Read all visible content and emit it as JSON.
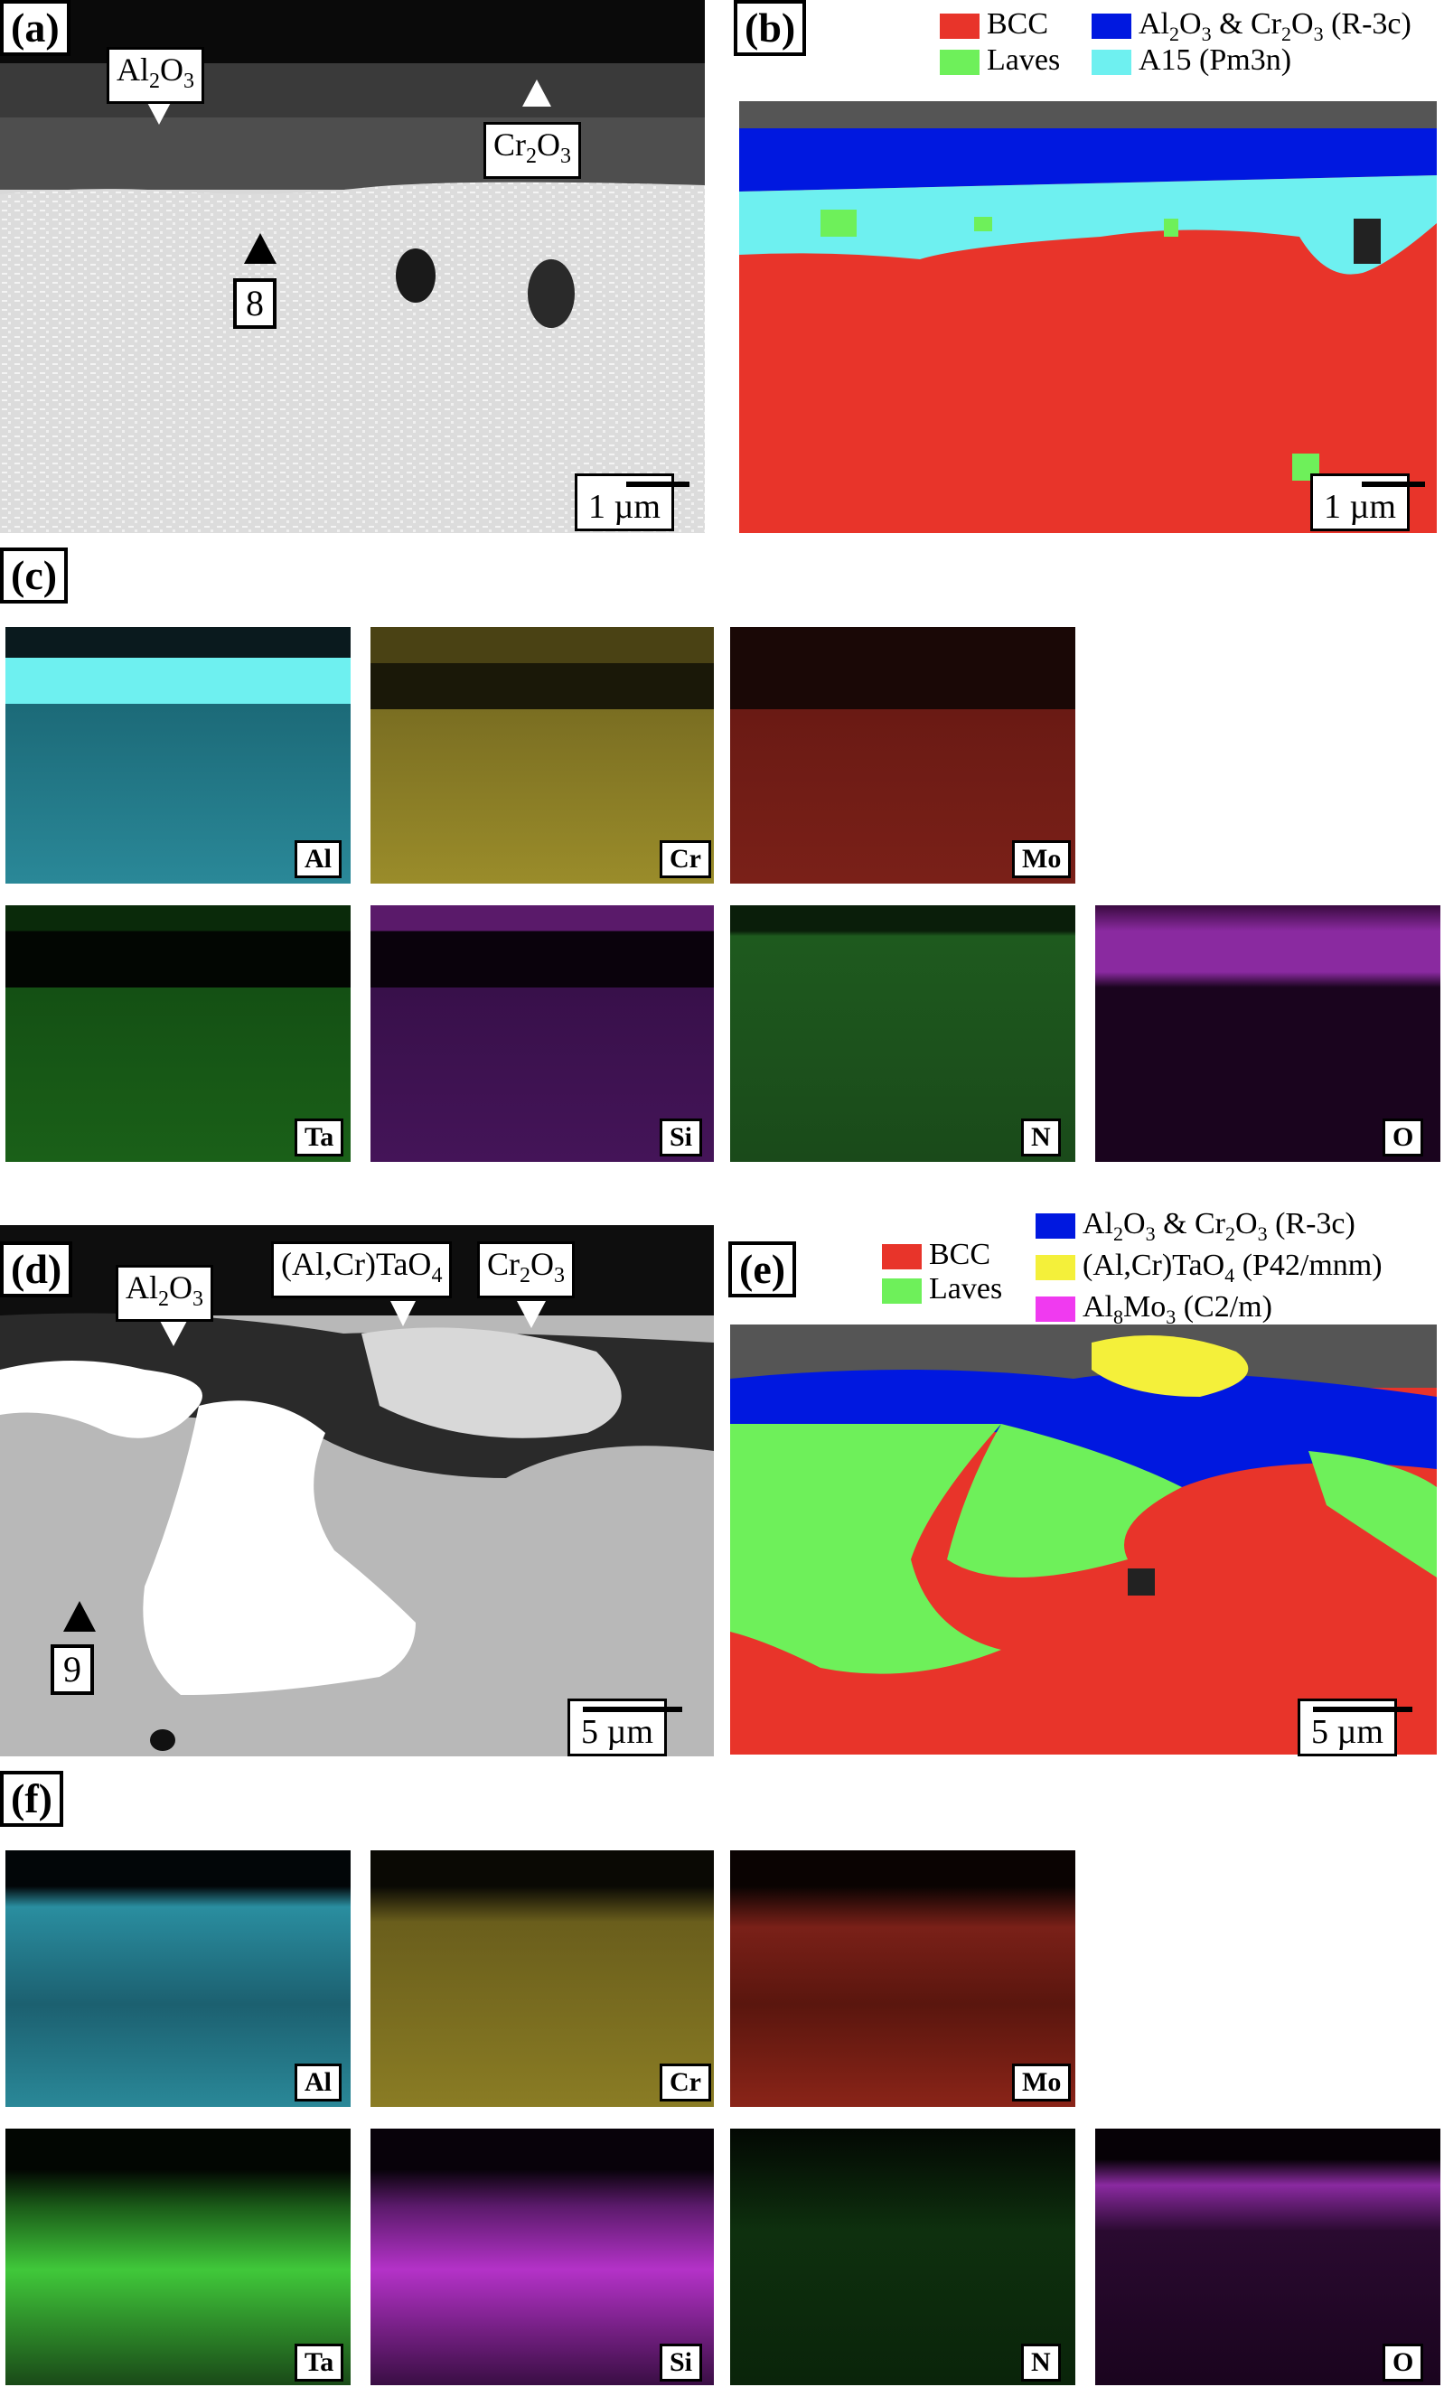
{
  "panels": {
    "a": {
      "letter": "(a)",
      "label_al2o3": "Al2O3",
      "label_cr2o3": "Cr2O3",
      "point": "8",
      "scale": "1 µm"
    },
    "b": {
      "letter": "(b)",
      "scale": "1 µm",
      "legend": [
        {
          "name": "BCC",
          "color": "#e8342a"
        },
        {
          "name": "Laves",
          "color": "#6ef05a"
        },
        {
          "name": "Al2O3 & Cr2O3 (R-3c)",
          "color": "#0018e0"
        },
        {
          "name": "A15 (Pm3n)",
          "color": "#6ef0f0"
        }
      ]
    },
    "c": {
      "letter": "(c)",
      "elements": [
        "Al",
        "Cr",
        "Mo",
        "Ta",
        "Si",
        "N",
        "O"
      ]
    },
    "d": {
      "letter": "(d)",
      "label_al2o3": "Al2O3",
      "label_altao4": "(Al,Cr)TaO4",
      "label_cr2o3": "Cr2O3",
      "point": "9",
      "scale": "5 µm"
    },
    "e": {
      "letter": "(e)",
      "scale": "5 µm",
      "legend": [
        {
          "name": "BCC",
          "color": "#e8342a"
        },
        {
          "name": "Laves",
          "color": "#6ef05a"
        },
        {
          "name": "Al2O3 & Cr2O3 (R-3c)",
          "color": "#0018e0"
        },
        {
          "name": "(Al,Cr)TaO4 (P42/mnm)",
          "color": "#f4f03a"
        },
        {
          "name": "Al8Mo3 (C2/m)",
          "color": "#f03af0"
        }
      ]
    },
    "f": {
      "letter": "(f)",
      "elements": [
        "Al",
        "Cr",
        "Mo",
        "Ta",
        "Si",
        "N",
        "O"
      ]
    }
  },
  "colors": {
    "al": "#3cc8dc",
    "cr": "#c8b832",
    "mo": "#c83228",
    "ta": "#32c832",
    "si": "#b432c8",
    "n": "#28a028",
    "o": "#a028b4"
  }
}
